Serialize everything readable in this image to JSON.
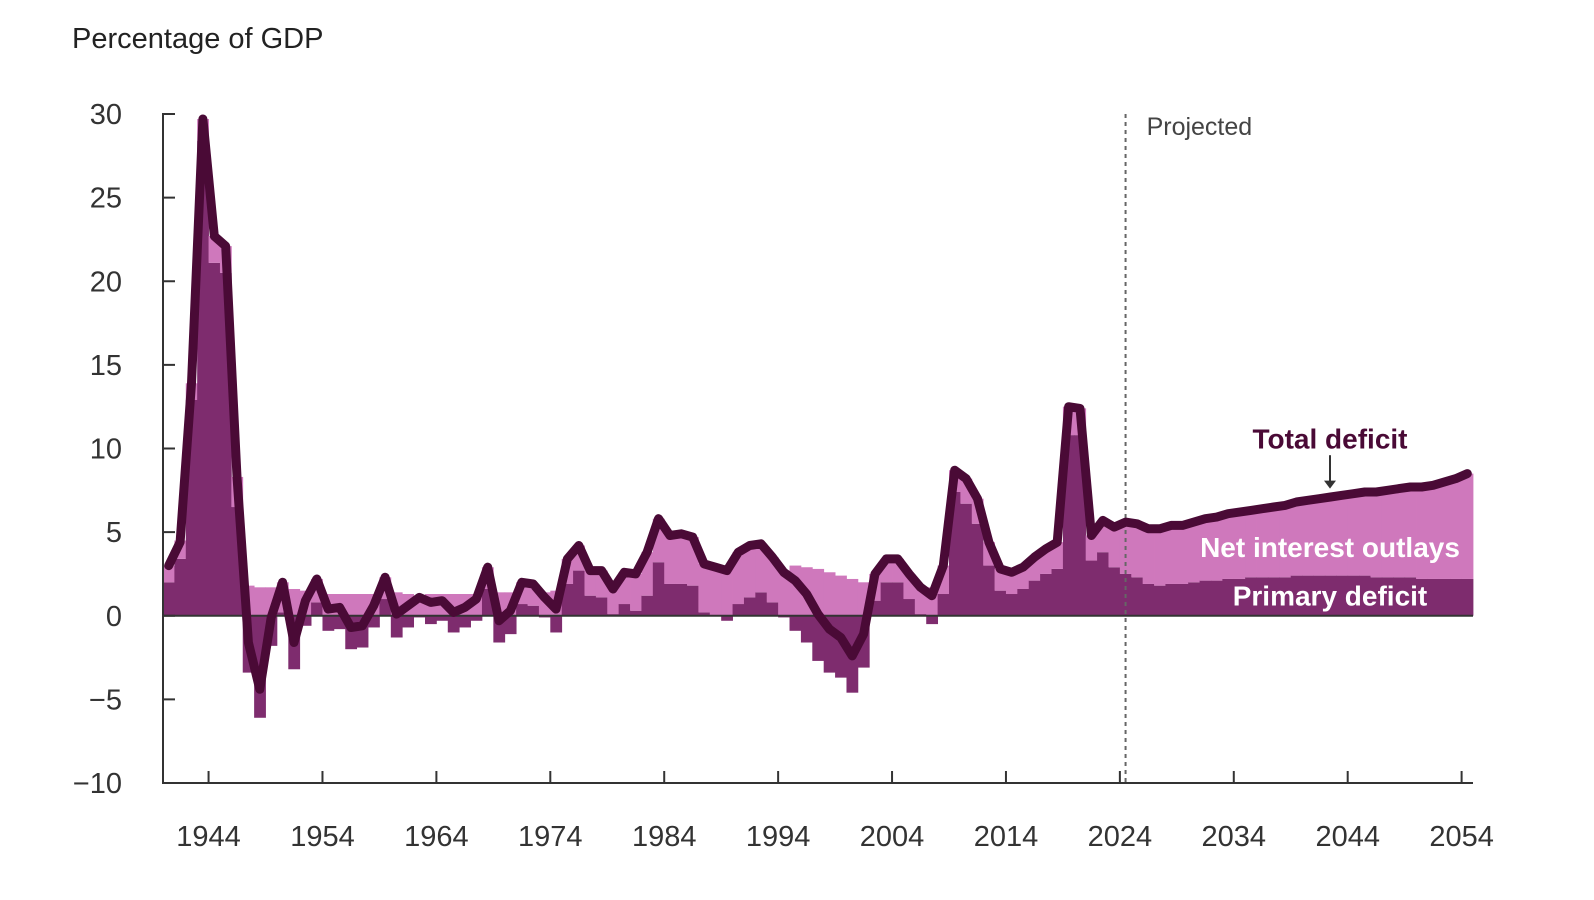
{
  "chart_data": {
    "type": "bar",
    "subtype": "stacked bars with total line",
    "ylabel": "Percentage of GDP",
    "ylim": [
      -10,
      30
    ],
    "yticks": [
      "30",
      "25",
      "20",
      "15",
      "10",
      "5",
      "0",
      "−5",
      "−10"
    ],
    "xticks": [
      "1944",
      "1954",
      "1964",
      "1974",
      "1984",
      "1994",
      "2004",
      "2014",
      "2024",
      "2034",
      "2044",
      "2054"
    ],
    "xlim": [
      1940,
      2054
    ],
    "projection_start": 2024,
    "projection_label": "Projected",
    "legend_placement": "inline labels at right",
    "series_labels": {
      "total": "Total deficit",
      "interest": "Net interest outlays",
      "primary": "Primary deficit"
    },
    "colors": {
      "primary": "#7e2c6e",
      "interest": "#cf78bc",
      "total_line": "#4a0a36",
      "axis": "#333333",
      "projection_line": "#666666"
    },
    "years": [
      1940,
      1941,
      1942,
      1943,
      1944,
      1945,
      1946,
      1947,
      1948,
      1949,
      1950,
      1951,
      1952,
      1953,
      1954,
      1955,
      1956,
      1957,
      1958,
      1959,
      1960,
      1961,
      1962,
      1963,
      1964,
      1965,
      1966,
      1967,
      1968,
      1969,
      1970,
      1971,
      1972,
      1973,
      1974,
      1975,
      1976,
      1977,
      1978,
      1979,
      1980,
      1981,
      1982,
      1983,
      1984,
      1985,
      1986,
      1987,
      1988,
      1989,
      1990,
      1991,
      1992,
      1993,
      1994,
      1995,
      1996,
      1997,
      1998,
      1999,
      2000,
      2001,
      2002,
      2003,
      2004,
      2005,
      2006,
      2007,
      2008,
      2009,
      2010,
      2011,
      2012,
      2013,
      2014,
      2015,
      2016,
      2017,
      2018,
      2019,
      2020,
      2021,
      2022,
      2023,
      2024,
      2025,
      2026,
      2027,
      2028,
      2029,
      2030,
      2031,
      2032,
      2033,
      2034,
      2035,
      2036,
      2037,
      2038,
      2039,
      2040,
      2041,
      2042,
      2043,
      2044,
      2045,
      2046,
      2047,
      2048,
      2049,
      2050,
      2051,
      2052,
      2053,
      2054
    ],
    "series": [
      {
        "name": "Primary deficit",
        "values": [
          2.0,
          3.4,
          12.9,
          28.4,
          21.1,
          20.5,
          6.5,
          -3.4,
          -6.1,
          -1.8,
          0.2,
          -3.2,
          -0.6,
          0.8,
          -0.9,
          -0.8,
          -2.0,
          -1.9,
          -0.7,
          1.0,
          -1.3,
          -0.7,
          -0.1,
          -0.5,
          -0.3,
          -1.0,
          -0.7,
          -0.3,
          1.6,
          -1.6,
          -1.1,
          0.7,
          0.6,
          -0.1,
          -1.0,
          1.9,
          2.7,
          1.2,
          1.1,
          0.1,
          0.7,
          0.3,
          1.2,
          3.2,
          1.9,
          1.9,
          1.8,
          0.2,
          0.0,
          -0.3,
          0.7,
          1.1,
          1.4,
          0.8,
          -0.1,
          -0.9,
          -1.6,
          -2.7,
          -3.4,
          -3.7,
          -4.6,
          -3.1,
          0.9,
          2.0,
          2.0,
          1.0,
          0.1,
          -0.5,
          1.3,
          7.4,
          6.7,
          5.5,
          3.0,
          1.5,
          1.3,
          1.6,
          2.1,
          2.5,
          2.8,
          10.8,
          10.8,
          3.3,
          3.8,
          2.9,
          2.5,
          2.3,
          1.9,
          1.8,
          1.9,
          1.9,
          2.0,
          2.1,
          2.1,
          2.2,
          2.2,
          2.3,
          2.3,
          2.3,
          2.3,
          2.4,
          2.4,
          2.4,
          2.4,
          2.4,
          2.4,
          2.4,
          2.3,
          2.3,
          2.3,
          2.3,
          2.2,
          2.2,
          2.2,
          2.2,
          2.2
        ]
      },
      {
        "name": "Net interest outlays",
        "values": [
          1.0,
          1.1,
          1.0,
          1.3,
          1.6,
          1.6,
          1.8,
          1.8,
          1.7,
          1.7,
          1.8,
          1.6,
          1.5,
          1.4,
          1.3,
          1.3,
          1.3,
          1.3,
          1.3,
          1.3,
          1.4,
          1.3,
          1.2,
          1.3,
          1.3,
          1.3,
          1.3,
          1.3,
          1.3,
          1.4,
          1.4,
          1.3,
          1.3,
          1.4,
          1.5,
          1.5,
          1.5,
          1.5,
          1.6,
          1.7,
          1.9,
          2.2,
          2.6,
          2.6,
          2.9,
          3.0,
          2.9,
          2.9,
          2.9,
          3.0,
          3.1,
          3.1,
          2.9,
          2.7,
          2.7,
          3.0,
          2.9,
          2.8,
          2.6,
          2.4,
          2.2,
          2.0,
          1.6,
          1.4,
          1.4,
          1.5,
          1.6,
          1.7,
          1.7,
          1.3,
          1.5,
          1.5,
          1.4,
          1.3,
          1.3,
          1.3,
          1.4,
          1.5,
          1.6,
          1.7,
          1.6,
          1.5,
          1.9,
          2.4,
          3.1,
          3.2,
          3.3,
          3.4,
          3.5,
          3.5,
          3.6,
          3.7,
          3.8,
          3.9,
          4.0,
          4.0,
          4.1,
          4.2,
          4.3,
          4.4,
          4.5,
          4.6,
          4.7,
          4.8,
          4.9,
          5.0,
          5.1,
          5.2,
          5.3,
          5.4,
          5.5,
          5.6,
          5.8,
          6.0,
          6.3
        ]
      }
    ],
    "total_deficit": [
      3.0,
      4.4,
      13.9,
      29.7,
      22.7,
      22.1,
      8.3,
      -1.6,
      -4.4,
      -0.1,
      2.0,
      -1.6,
      0.9,
      2.2,
      0.4,
      0.5,
      -0.7,
      -0.6,
      0.6,
      2.3,
      0.1,
      0.6,
      1.1,
      0.8,
      0.9,
      0.2,
      0.5,
      1.0,
      2.9,
      -0.3,
      0.3,
      2.0,
      1.9,
      1.1,
      0.4,
      3.4,
      4.2,
      2.7,
      2.7,
      1.6,
      2.6,
      2.5,
      3.8,
      5.8,
      4.8,
      4.9,
      4.7,
      3.1,
      2.9,
      2.7,
      3.8,
      4.2,
      4.3,
      3.5,
      2.6,
      2.1,
      1.3,
      0.1,
      -0.8,
      -1.3,
      -2.4,
      -1.1,
      2.5,
      3.4,
      3.4,
      2.5,
      1.7,
      1.2,
      3.0,
      8.7,
      8.2,
      7.0,
      4.4,
      2.8,
      2.6,
      2.9,
      3.5,
      4.0,
      4.4,
      12.5,
      12.4,
      4.8,
      5.7,
      5.3,
      5.6,
      5.5,
      5.2,
      5.2,
      5.4,
      5.4,
      5.6,
      5.8,
      5.9,
      6.1,
      6.2,
      6.3,
      6.4,
      6.5,
      6.6,
      6.8,
      6.9,
      7.0,
      7.1,
      7.2,
      7.3,
      7.4,
      7.4,
      7.5,
      7.6,
      7.7,
      7.7,
      7.8,
      8.0,
      8.2,
      8.5
    ]
  }
}
